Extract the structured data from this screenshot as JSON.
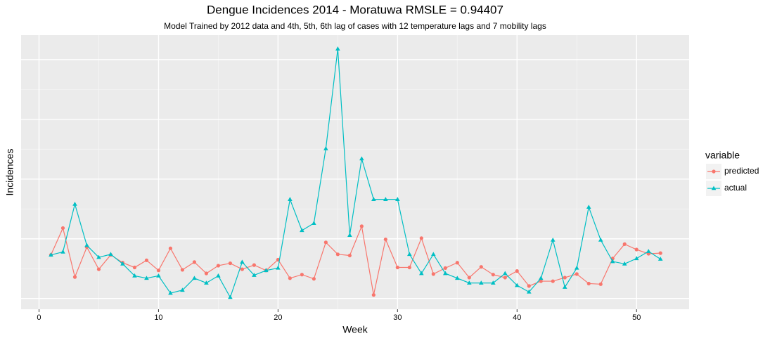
{
  "chart_data": {
    "type": "line",
    "title": "Dengue Incidences 2014 -  Moratuwa  RMSLE =  0.94407",
    "subtitle": "Model Trained by 2012 data and 4th, 5th, 6th lag of cases with 12 temperature lags and 7 mobility lags",
    "x_label": "Week",
    "y_label": "Incidences",
    "legend_title": "variable",
    "legend_position": "right",
    "grid": true,
    "x": [
      1,
      2,
      3,
      4,
      5,
      6,
      7,
      8,
      9,
      10,
      11,
      12,
      13,
      14,
      15,
      16,
      17,
      18,
      19,
      20,
      21,
      22,
      23,
      24,
      25,
      26,
      27,
      28,
      29,
      30,
      31,
      32,
      33,
      34,
      35,
      36,
      37,
      38,
      39,
      40,
      41,
      42,
      43,
      44,
      45,
      46,
      47,
      48,
      49,
      50,
      51,
      52
    ],
    "xlim": [
      -1.5,
      54.4
    ],
    "xticks": [
      0,
      10,
      20,
      30,
      40,
      50
    ],
    "ylim": [
      -1.8,
      44.1
    ],
    "yticks": [
      0,
      10,
      20,
      30,
      40
    ],
    "series": [
      {
        "name": "predicted",
        "color": "#F8766D",
        "marker": "circle",
        "values": [
          7.3,
          11.8,
          3.6,
          8.6,
          4.9,
          7.3,
          6.0,
          5.2,
          6.4,
          4.7,
          8.4,
          4.8,
          6.1,
          4.2,
          5.5,
          5.9,
          4.9,
          5.6,
          4.7,
          6.5,
          3.4,
          4.0,
          3.3,
          9.4,
          7.4,
          7.2,
          12.1,
          0.6,
          9.9,
          5.2,
          5.2,
          10.1,
          4.1,
          5.1,
          6.0,
          3.5,
          5.3,
          4.0,
          3.5,
          4.6,
          2.1,
          2.9,
          2.9,
          3.5,
          4.1,
          2.5,
          2.4,
          6.7,
          9.1,
          8.2,
          7.5,
          7.6
        ]
      },
      {
        "name": "actual",
        "color": "#00BFC4",
        "marker": "triangle",
        "values": [
          7.3,
          7.8,
          15.8,
          8.9,
          6.9,
          7.4,
          5.8,
          3.8,
          3.4,
          3.8,
          0.9,
          1.4,
          3.4,
          2.6,
          3.8,
          0.2,
          6.1,
          3.9,
          4.7,
          5.1,
          16.6,
          11.4,
          12.6,
          25.1,
          41.8,
          10.6,
          23.4,
          16.6,
          16.6,
          16.6,
          7.4,
          4.2,
          7.4,
          4.2,
          3.4,
          2.6,
          2.6,
          2.6,
          4.2,
          2.2,
          1.1,
          3.4,
          9.8,
          1.9,
          5.1,
          15.3,
          9.8,
          6.2,
          5.8,
          6.7,
          7.9,
          6.6
        ]
      }
    ]
  }
}
